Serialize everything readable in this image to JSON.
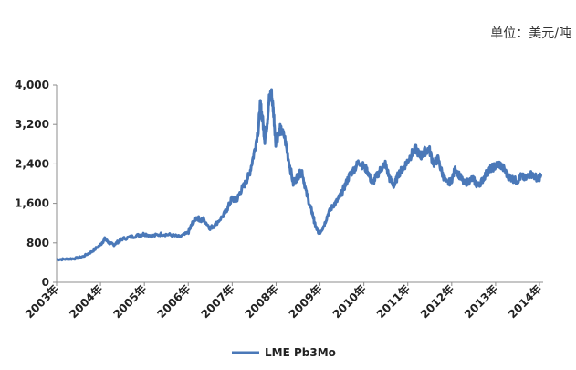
{
  "chart_data": {
    "type": "line",
    "unit_label": "单位：美元/吨",
    "y_ticks": [
      "0",
      "800",
      "1,600",
      "2,400",
      "3,200",
      "4,000"
    ],
    "y_tick_values": [
      0,
      800,
      1600,
      2400,
      3200,
      4000
    ],
    "ylim": [
      0,
      4000
    ],
    "x_ticks": [
      "2003年",
      "2004年",
      "2005年",
      "2006年",
      "2007年",
      "2008年",
      "2009年",
      "2010年",
      "2011年",
      "2012年",
      "2013年",
      "2014年"
    ],
    "xlim": [
      2003.0,
      2014.1
    ],
    "grid": false,
    "legend_position": "bottom",
    "series_color": "#4a78b8",
    "series": [
      {
        "name": "LME Pb3Mo",
        "x": [
          2003.0,
          2003.2,
          2003.4,
          2003.6,
          2003.8,
          2004.0,
          2004.1,
          2004.2,
          2004.3,
          2004.4,
          2004.5,
          2004.7,
          2004.9,
          2005.0,
          2005.2,
          2005.4,
          2005.6,
          2005.8,
          2006.0,
          2006.1,
          2006.2,
          2006.3,
          2006.35,
          2006.5,
          2006.6,
          2006.8,
          2006.9,
          2007.0,
          2007.1,
          2007.2,
          2007.3,
          2007.4,
          2007.5,
          2007.6,
          2007.65,
          2007.7,
          2007.75,
          2007.8,
          2007.85,
          2007.9,
          2007.95,
          2008.0,
          2008.1,
          2008.2,
          2008.3,
          2008.4,
          2008.5,
          2008.6,
          2008.7,
          2008.8,
          2008.85,
          2008.9,
          2008.95,
          2009.0,
          2009.1,
          2009.2,
          2009.3,
          2009.4,
          2009.5,
          2009.6,
          2009.7,
          2009.8,
          2009.9,
          2010.0,
          2010.1,
          2010.2,
          2010.3,
          2010.4,
          2010.5,
          2010.6,
          2010.7,
          2010.8,
          2010.9,
          2011.0,
          2011.1,
          2011.2,
          2011.3,
          2011.4,
          2011.5,
          2011.6,
          2011.7,
          2011.8,
          2011.9,
          2012.0,
          2012.1,
          2012.2,
          2012.3,
          2012.4,
          2012.5,
          2012.6,
          2012.7,
          2012.8,
          2012.9,
          2013.0,
          2013.1,
          2013.2,
          2013.3,
          2013.4,
          2013.5,
          2013.6,
          2013.7,
          2013.8,
          2013.9,
          2014.0,
          2014.05
        ],
        "values": [
          460,
          470,
          480,
          520,
          620,
          760,
          880,
          800,
          760,
          820,
          880,
          920,
          960,
          980,
          940,
          980,
          960,
          920,
          1000,
          1200,
          1320,
          1250,
          1280,
          1100,
          1150,
          1350,
          1500,
          1700,
          1650,
          1850,
          2000,
          2200,
          2600,
          3100,
          3600,
          3300,
          2900,
          3200,
          3700,
          3850,
          3450,
          2850,
          3100,
          2950,
          2450,
          2000,
          2150,
          2250,
          1800,
          1500,
          1350,
          1150,
          1050,
          1000,
          1150,
          1400,
          1550,
          1650,
          1800,
          2000,
          2200,
          2300,
          2450,
          2350,
          2250,
          2000,
          2150,
          2300,
          2400,
          2100,
          1950,
          2200,
          2300,
          2450,
          2600,
          2700,
          2550,
          2650,
          2700,
          2400,
          2500,
          2200,
          2000,
          2050,
          2300,
          2150,
          2000,
          2050,
          2100,
          1950,
          2050,
          2200,
          2300,
          2350,
          2400,
          2300,
          2150,
          2100,
          2050,
          2150,
          2100,
          2200,
          2150,
          2100,
          2150
        ]
      }
    ]
  }
}
